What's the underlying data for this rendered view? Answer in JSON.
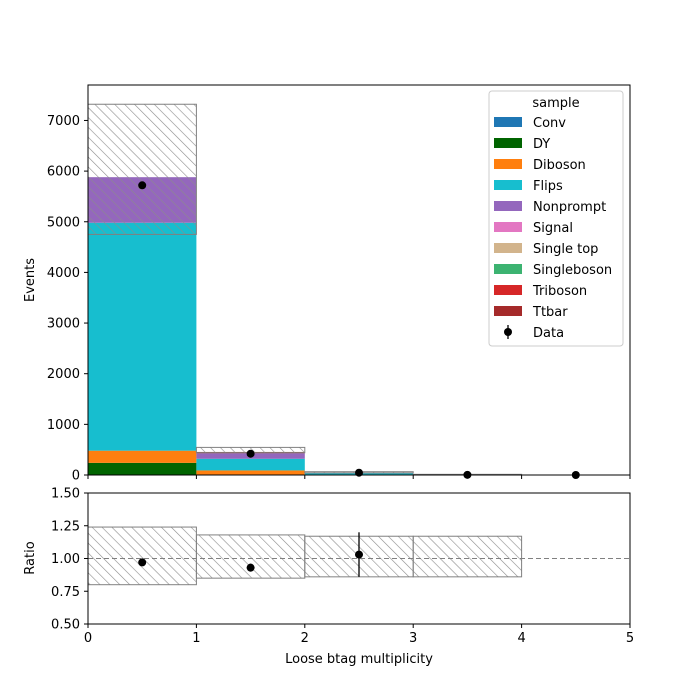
{
  "chart_data": [
    {
      "type": "bar",
      "panel": "main",
      "stacked": true,
      "bin_edges": [
        0,
        1,
        2,
        3,
        4,
        5
      ],
      "xlim": [
        0,
        5
      ],
      "ylim": [
        0,
        7700
      ],
      "ylabel": "Events",
      "y_ticks": [
        0,
        1000,
        2000,
        3000,
        4000,
        5000,
        6000,
        7000
      ],
      "x_ticks": [
        0,
        1,
        2,
        3,
        4,
        5
      ],
      "legend": {
        "title": "sample",
        "placement": "top-right"
      },
      "series": [
        {
          "name": "Conv",
          "color": "#1f77b4",
          "values": [
            0,
            0,
            0,
            0,
            0
          ]
        },
        {
          "name": "DY",
          "color": "#006400",
          "values": [
            240,
            10,
            2,
            0,
            0
          ]
        },
        {
          "name": "Diboson",
          "color": "#ff7f0e",
          "values": [
            240,
            80,
            5,
            0,
            0
          ]
        },
        {
          "name": "Flips",
          "color": "#17becf",
          "values": [
            4500,
            230,
            30,
            8,
            0
          ]
        },
        {
          "name": "Nonprompt",
          "color": "#9467bd",
          "values": [
            900,
            110,
            10,
            2,
            0
          ]
        },
        {
          "name": "Signal",
          "color": "#e377c2",
          "values": [
            0,
            0,
            0,
            0,
            0
          ]
        },
        {
          "name": "Single top",
          "color": "#d2b48c",
          "values": [
            0,
            0,
            0,
            0,
            0
          ]
        },
        {
          "name": "Singleboson",
          "color": "#3cb371",
          "values": [
            0,
            0,
            0,
            0,
            0
          ]
        },
        {
          "name": "Triboson",
          "color": "#d62728",
          "values": [
            0,
            0,
            0,
            0,
            0
          ]
        },
        {
          "name": "Ttbar",
          "color": "#a52a2a",
          "values": [
            0,
            25,
            3,
            0,
            0
          ]
        }
      ],
      "data": {
        "name": "Data",
        "x": [
          0.5,
          1.5,
          2.5,
          3.5,
          4.5
        ],
        "values": [
          5720,
          420,
          45,
          3,
          0
        ]
      },
      "uncertainty_band": [
        {
          "bin": [
            0,
            1
          ],
          "low": 4750,
          "high": 7320
        },
        {
          "bin": [
            1,
            2
          ],
          "low": 440,
          "high": 545
        },
        {
          "bin": [
            2,
            3
          ],
          "low": 40,
          "high": 65
        },
        {
          "bin": [
            3,
            4
          ],
          "low": 8,
          "high": 13
        }
      ]
    },
    {
      "type": "scatter",
      "panel": "ratio",
      "xlabel": "Loose btag multiplicity",
      "ylabel": "Ratio",
      "xlim": [
        0,
        5
      ],
      "ylim": [
        0.5,
        1.5
      ],
      "y_ticks": [
        "0.50",
        "0.75",
        "1.00",
        "1.25",
        "1.50"
      ],
      "x_ticks": [
        "0",
        "1",
        "2",
        "3",
        "4",
        "5"
      ],
      "reference_line": 1.0,
      "points": [
        {
          "x": 0.5,
          "y": 0.97,
          "err": 0.0
        },
        {
          "x": 1.5,
          "y": 0.93,
          "err": 0.03
        },
        {
          "x": 2.5,
          "y": 1.03,
          "err": 0.17
        }
      ],
      "uncertainty_band": [
        {
          "bin": [
            0,
            1
          ],
          "low": 0.8,
          "high": 1.24
        },
        {
          "bin": [
            1,
            2
          ],
          "low": 0.85,
          "high": 1.18
        },
        {
          "bin": [
            2,
            3
          ],
          "low": 0.86,
          "high": 1.17
        },
        {
          "bin": [
            3,
            4
          ],
          "low": 0.86,
          "high": 1.17
        }
      ]
    }
  ]
}
